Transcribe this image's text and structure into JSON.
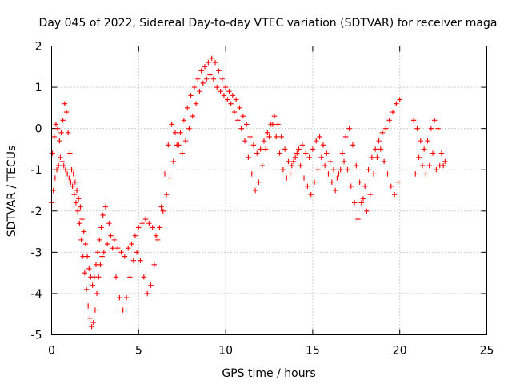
{
  "chart_data": {
    "type": "scatter",
    "title": "Day 045 of 2022, Sidereal Day-to-day VTEC variation (SDTVAR) for receiver maga",
    "xlabel": "GPS time / hours",
    "ylabel": "SDTVAR / TECUs",
    "xlim": [
      0,
      25
    ],
    "ylim": [
      -5,
      2
    ],
    "xticks": [
      0,
      5,
      10,
      15,
      20,
      25
    ],
    "yticks": [
      -5,
      -4,
      -3,
      -2,
      -1,
      0,
      1,
      2
    ],
    "grid": true,
    "marker": "+",
    "color": "#ff0000",
    "series": [
      {
        "name": "SDTVAR",
        "x": [
          0.0,
          0.1,
          0.2,
          0.3,
          0.4,
          0.5,
          0.6,
          0.7,
          0.8,
          0.9,
          1.0,
          1.1,
          1.2,
          1.3,
          1.4,
          1.5,
          1.6,
          1.7,
          1.8,
          1.9,
          2.0,
          2.1,
          2.2,
          2.3,
          2.4,
          2.5,
          2.6,
          2.7,
          2.8,
          2.9,
          3.0,
          3.2,
          3.4,
          3.6,
          3.8,
          4.0,
          4.2,
          4.4,
          4.6,
          4.8,
          5.0,
          5.2,
          5.4,
          5.6,
          5.8,
          6.0,
          6.2,
          6.4,
          6.6,
          6.8,
          7.0,
          7.2,
          7.4,
          7.6,
          7.8,
          8.0,
          8.2,
          8.4,
          8.6,
          8.8,
          9.0,
          9.2,
          9.4,
          9.6,
          9.8,
          10.0,
          10.2,
          10.4,
          10.6,
          10.8,
          11.0,
          11.2,
          11.4,
          11.6,
          11.8,
          12.0,
          12.2,
          12.4,
          12.6,
          12.8,
          13.0,
          13.2,
          13.4,
          13.6,
          13.8,
          14.0,
          14.2,
          14.4,
          14.6,
          14.8,
          15.0,
          15.2,
          15.4,
          15.6,
          15.8,
          16.0,
          16.2,
          16.4,
          16.6,
          16.8,
          17.0,
          17.2,
          17.4,
          17.6,
          17.8,
          18.0,
          18.2,
          18.4,
          18.6,
          18.8,
          19.0,
          19.2,
          19.4,
          19.6,
          19.8,
          20.0,
          20.8,
          21.0,
          21.2,
          21.4,
          21.6,
          21.8,
          22.0,
          22.2,
          22.4,
          22.6,
          0.05,
          0.15,
          0.25,
          0.35,
          0.45,
          0.55,
          0.65,
          0.75,
          0.85,
          0.95,
          1.05,
          1.15,
          1.25,
          1.35,
          1.45,
          1.55,
          1.65,
          1.75,
          1.85,
          1.95,
          2.05,
          2.15,
          2.25,
          2.35,
          2.45,
          2.55,
          2.65,
          2.75,
          2.85,
          2.95,
          3.1,
          3.3,
          3.5,
          3.7,
          3.9,
          4.1,
          4.3,
          4.5,
          4.7,
          4.9,
          5.1,
          5.3,
          5.5,
          5.7,
          5.9,
          6.1,
          6.3,
          6.5,
          6.7,
          6.9,
          7.1,
          7.3,
          7.5,
          7.7,
          7.9,
          8.1,
          8.3,
          8.5,
          8.7,
          8.9,
          9.1,
          9.3,
          9.5,
          9.7,
          9.9,
          10.1,
          10.3,
          10.5,
          10.7,
          10.9,
          11.1,
          11.3,
          11.5,
          11.7,
          11.9,
          12.1,
          12.3,
          12.5,
          12.7,
          12.9,
          13.1,
          13.3,
          13.5,
          13.7,
          13.9,
          14.1,
          14.3,
          14.5,
          14.7,
          14.9,
          15.1,
          15.3,
          15.5,
          15.7,
          15.9,
          16.1,
          16.3,
          16.5,
          16.7,
          16.9,
          17.1,
          17.3,
          17.5,
          17.7,
          17.9,
          18.1,
          18.3,
          18.5,
          18.7,
          18.9,
          19.1,
          19.3,
          19.5,
          19.7,
          19.9,
          20.9,
          21.1,
          21.3,
          21.5,
          21.7,
          21.9,
          22.1,
          22.3,
          22.5
        ],
        "y": [
          -1.8,
          -1.5,
          -1.2,
          -1.0,
          -0.9,
          -0.7,
          -0.8,
          -0.9,
          -1.0,
          -1.1,
          -1.2,
          -1.3,
          -1.4,
          -1.6,
          -1.8,
          -2.0,
          -2.3,
          -2.7,
          -3.1,
          -3.5,
          -3.9,
          -4.3,
          -4.6,
          -4.8,
          -4.7,
          -4.4,
          -4.0,
          -3.6,
          -3.3,
          -3.1,
          -3.0,
          -2.8,
          -2.6,
          -2.7,
          -2.9,
          -3.0,
          -3.1,
          -2.9,
          -2.8,
          -2.6,
          -2.4,
          -2.3,
          -2.2,
          -2.3,
          -2.4,
          -2.6,
          -2.4,
          -2.0,
          -1.6,
          -1.2,
          -0.8,
          -0.4,
          -0.1,
          0.2,
          0.5,
          0.8,
          1.0,
          1.2,
          1.4,
          1.5,
          1.6,
          1.7,
          1.6,
          1.4,
          1.2,
          1.0,
          0.9,
          0.8,
          0.7,
          0.5,
          0.3,
          0.1,
          -0.2,
          -0.4,
          -0.6,
          -0.5,
          -0.3,
          -0.1,
          0.1,
          0.3,
          0.1,
          -0.2,
          -0.5,
          -0.8,
          -0.9,
          -0.7,
          -0.5,
          -0.4,
          -0.6,
          -0.7,
          -0.5,
          -0.3,
          -0.2,
          -0.4,
          -0.6,
          -0.8,
          -1.0,
          -1.2,
          -1.0,
          -0.8,
          -1.0,
          -1.4,
          -1.8,
          -2.2,
          -1.8,
          -1.4,
          -1.0,
          -0.7,
          -0.5,
          -0.3,
          -0.1,
          0.0,
          0.2,
          0.4,
          0.6,
          0.7,
          0.2,
          0.0,
          -0.3,
          -0.5,
          -0.3,
          0.0,
          0.2,
          0.0,
          -0.6,
          -0.8,
          -0.6,
          -0.2,
          0.1,
          0.0,
          -0.3,
          -0.1,
          0.2,
          0.6,
          0.4,
          -0.1,
          -0.6,
          -1.0,
          -1.1,
          -1.3,
          -1.5,
          -1.7,
          -1.9,
          -2.2,
          -2.5,
          -2.8,
          -3.1,
          -3.4,
          -3.6,
          -3.8,
          -3.6,
          -3.3,
          -3.0,
          -2.7,
          -2.4,
          -2.1,
          -1.9,
          -2.3,
          -2.9,
          -3.6,
          -4.1,
          -4.4,
          -4.1,
          -3.6,
          -3.2,
          -3.0,
          -3.2,
          -3.6,
          -4.0,
          -3.8,
          -3.3,
          -2.7,
          -1.9,
          -1.1,
          -0.4,
          0.1,
          -0.1,
          -0.4,
          -0.6,
          -0.3,
          0.0,
          0.3,
          0.6,
          0.9,
          1.1,
          1.2,
          1.3,
          1.2,
          1.0,
          0.9,
          0.8,
          0.7,
          0.6,
          0.4,
          0.2,
          0.0,
          -0.3,
          -0.7,
          -1.1,
          -1.5,
          -1.3,
          -0.9,
          -0.5,
          -0.2,
          0.1,
          -0.2,
          -0.6,
          -1.0,
          -1.2,
          -1.1,
          -0.8,
          -0.6,
          -0.9,
          -1.2,
          -1.4,
          -1.6,
          -1.3,
          -1.0,
          -0.7,
          -0.9,
          -1.1,
          -1.3,
          -1.5,
          -1.1,
          -0.6,
          -0.2,
          0.0,
          -0.4,
          -0.9,
          -1.3,
          -1.7,
          -2.0,
          -1.6,
          -1.1,
          -0.7,
          -0.5,
          -0.8,
          -1.1,
          -1.4,
          -1.6,
          -1.3,
          -1.1,
          -0.7,
          -0.9,
          -1.1,
          -0.9,
          -0.6,
          -1.0,
          -0.9,
          -0.9
        ]
      }
    ]
  }
}
